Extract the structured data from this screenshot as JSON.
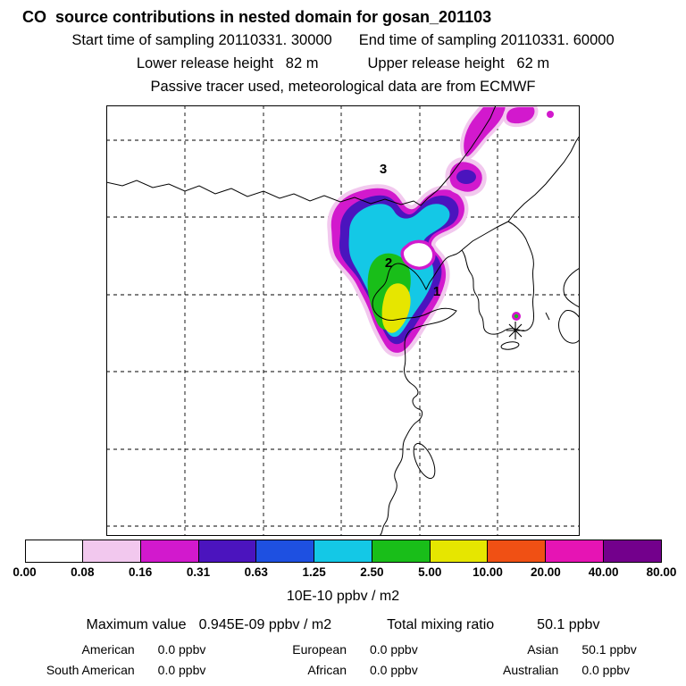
{
  "header": {
    "title": "CO  source contributions in nested domain for gosan_201103",
    "start_time": "Start time of sampling 20110331. 30000",
    "end_time": "End time of sampling 20110331. 60000",
    "lower_release": "Lower release height   82 m",
    "upper_release": "Upper release height   62 m",
    "tracer_note": "Passive tracer used, meteorological data are from ECMWF"
  },
  "map": {
    "source_labels": [
      {
        "text": "1"
      },
      {
        "text": "2"
      },
      {
        "text": "3"
      }
    ],
    "receptor_marker": "asterisk"
  },
  "chart_data": {
    "type": "heatmap",
    "title": "CO  source contributions in nested domain for gosan_201103",
    "subtitle_lines": [
      "Start time of sampling 20110331. 30000    End time of sampling 20110331. 60000",
      "Lower release height   82 m    Upper release height   62 m",
      "Passive tracer used, meteorological data are from ECMWF"
    ],
    "colorbar": {
      "ticks": [
        "0.00",
        "0.08",
        "0.16",
        "0.31",
        "0.63",
        "1.25",
        "2.50",
        "5.00",
        "10.00",
        "20.00",
        "40.00",
        "80.00"
      ],
      "colors": [
        "#ffffff",
        "#f2c8ee",
        "#d219cd",
        "#4b14be",
        "#1e50e1",
        "#14c8e6",
        "#19be19",
        "#e6e600",
        "#f05014",
        "#e614b4",
        "#73008c"
      ],
      "units_label": "10E-10 ppbv / m2"
    },
    "overlay": {
      "source_point_labels": [
        "1",
        "2",
        "3"
      ],
      "receptor_marker": "asterisk"
    },
    "stats": {
      "max_label": "Maximum value",
      "max_value": "0.945E-09 ppbv / m2",
      "total_label": "Total mixing ratio",
      "total_value": "50.1 ppbv"
    },
    "contributions": [
      {
        "region": "American",
        "value": "0.0 ppbv"
      },
      {
        "region": "European",
        "value": "0.0 ppbv"
      },
      {
        "region": "Asian",
        "value": "50.1 ppbv"
      },
      {
        "region": "South American",
        "value": "0.0 ppbv"
      },
      {
        "region": "African",
        "value": "0.0 ppbv"
      },
      {
        "region": "Australian",
        "value": "0.0 ppbv"
      }
    ]
  }
}
